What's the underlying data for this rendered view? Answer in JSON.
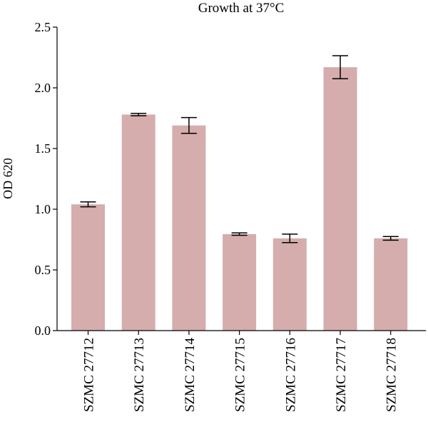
{
  "chart_data": {
    "type": "bar",
    "title": "Growth at 37°C",
    "xlabel": "",
    "ylabel": "OD 620",
    "ylim": [
      0,
      2.5
    ],
    "yticks": [
      0.0,
      0.5,
      1.0,
      1.5,
      2.0,
      2.5
    ],
    "ytick_labels": [
      "0.0",
      "0.5",
      "1.0",
      "1.5",
      "2.0",
      "2.5"
    ],
    "categories": [
      "SZMC 27712",
      "SZMC 27713",
      "SZMC 27714",
      "SZMC 27715",
      "SZMC 27716",
      "SZMC 27717",
      "SZMC 27718"
    ],
    "values": [
      1.04,
      1.78,
      1.69,
      0.795,
      0.76,
      2.17,
      0.76
    ],
    "errors": [
      0.02,
      0.01,
      0.065,
      0.01,
      0.035,
      0.095,
      0.015
    ],
    "grid": false,
    "legend": false,
    "bar_color": "#d4adac"
  }
}
